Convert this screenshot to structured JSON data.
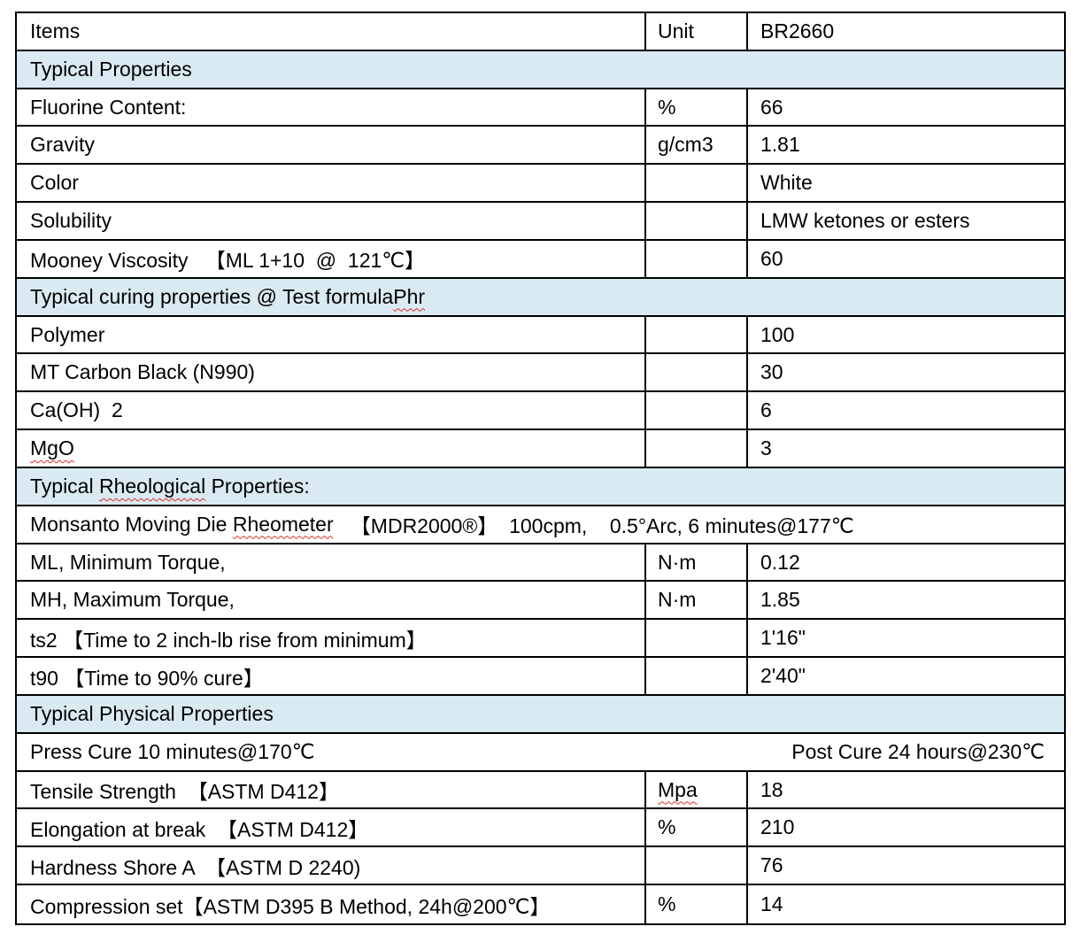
{
  "colors": {
    "section_bg": "#DAEAF2",
    "border": "#000000",
    "text": "#000000",
    "spell_underline": "#D93025"
  },
  "header": {
    "items": "Items",
    "unit": "Unit",
    "grade": "BR2660"
  },
  "sections": {
    "typical": {
      "title": "Typical Properties"
    },
    "curing": {
      "title": "Typical curing properties @ Test formula",
      "right_label": "Phr"
    },
    "rheological": {
      "pre": "Typical ",
      "spell": "Rheological",
      "post": " Properties:"
    },
    "physical": {
      "title": "Typical Physical Properties"
    }
  },
  "rows": {
    "fluorine": {
      "label": "Fluorine Content:",
      "unit": "%",
      "value": "66"
    },
    "gravity": {
      "label": "Gravity",
      "unit": "g/cm3",
      "value": "1.81"
    },
    "color": {
      "label": "Color",
      "unit": "",
      "value": "White"
    },
    "solubility": {
      "label": "Solubility",
      "unit": "",
      "value": "LMW ketones or esters"
    },
    "mooney": {
      "label": "Mooney Viscosity   【ML 1+10  @  121℃】",
      "unit": "",
      "value": "60"
    },
    "polymer": {
      "label": "Polymer",
      "unit": "",
      "value": "100"
    },
    "carbon_black": {
      "label": "MT Carbon Black (N990)",
      "unit": "",
      "value": "30"
    },
    "calcium_hydroxide": {
      "label": "Ca(OH)  2",
      "unit": "",
      "value": "6"
    },
    "mgo": {
      "label": "MgO",
      "unit": "",
      "value": "3"
    },
    "ml_torque": {
      "label": "ML, Minimum Torque,",
      "unit": "N·m",
      "value": "0.12"
    },
    "mh_torque": {
      "label": "MH, Maximum Torque,",
      "unit": "N·m",
      "value": "1.85"
    },
    "ts2": {
      "label": "ts2 【Time to 2 inch-lb rise from minimum】",
      "unit": "",
      "value": "1'16\""
    },
    "t90": {
      "label": "t90 【Time to 90% cure】",
      "unit": "",
      "value": "2'40\""
    },
    "tensile": {
      "label": "Tensile Strength  【ASTM D412】",
      "unit": "Mpa",
      "value": "18"
    },
    "elongation": {
      "label": "Elongation at break  【ASTM D412】",
      "unit": "%",
      "value": "210"
    },
    "hardness": {
      "label": "Hardness Shore A  【ASTM D 2240)",
      "unit": "",
      "value": "76"
    },
    "compression": {
      "label": "Compression set【ASTM D395 B Method, 24h@200℃】",
      "unit": "%",
      "value": "14"
    }
  },
  "merged": {
    "monsanto": {
      "pre": "Monsanto Moving Die ",
      "spell": "Rheometer",
      "post": "   【MDR2000®】  100cpm,    0.5°Arc, 6 minutes@177℃"
    },
    "cure": {
      "left": "Press Cure 10 minutes@170℃",
      "right": "Post Cure 24 hours@230℃"
    }
  }
}
